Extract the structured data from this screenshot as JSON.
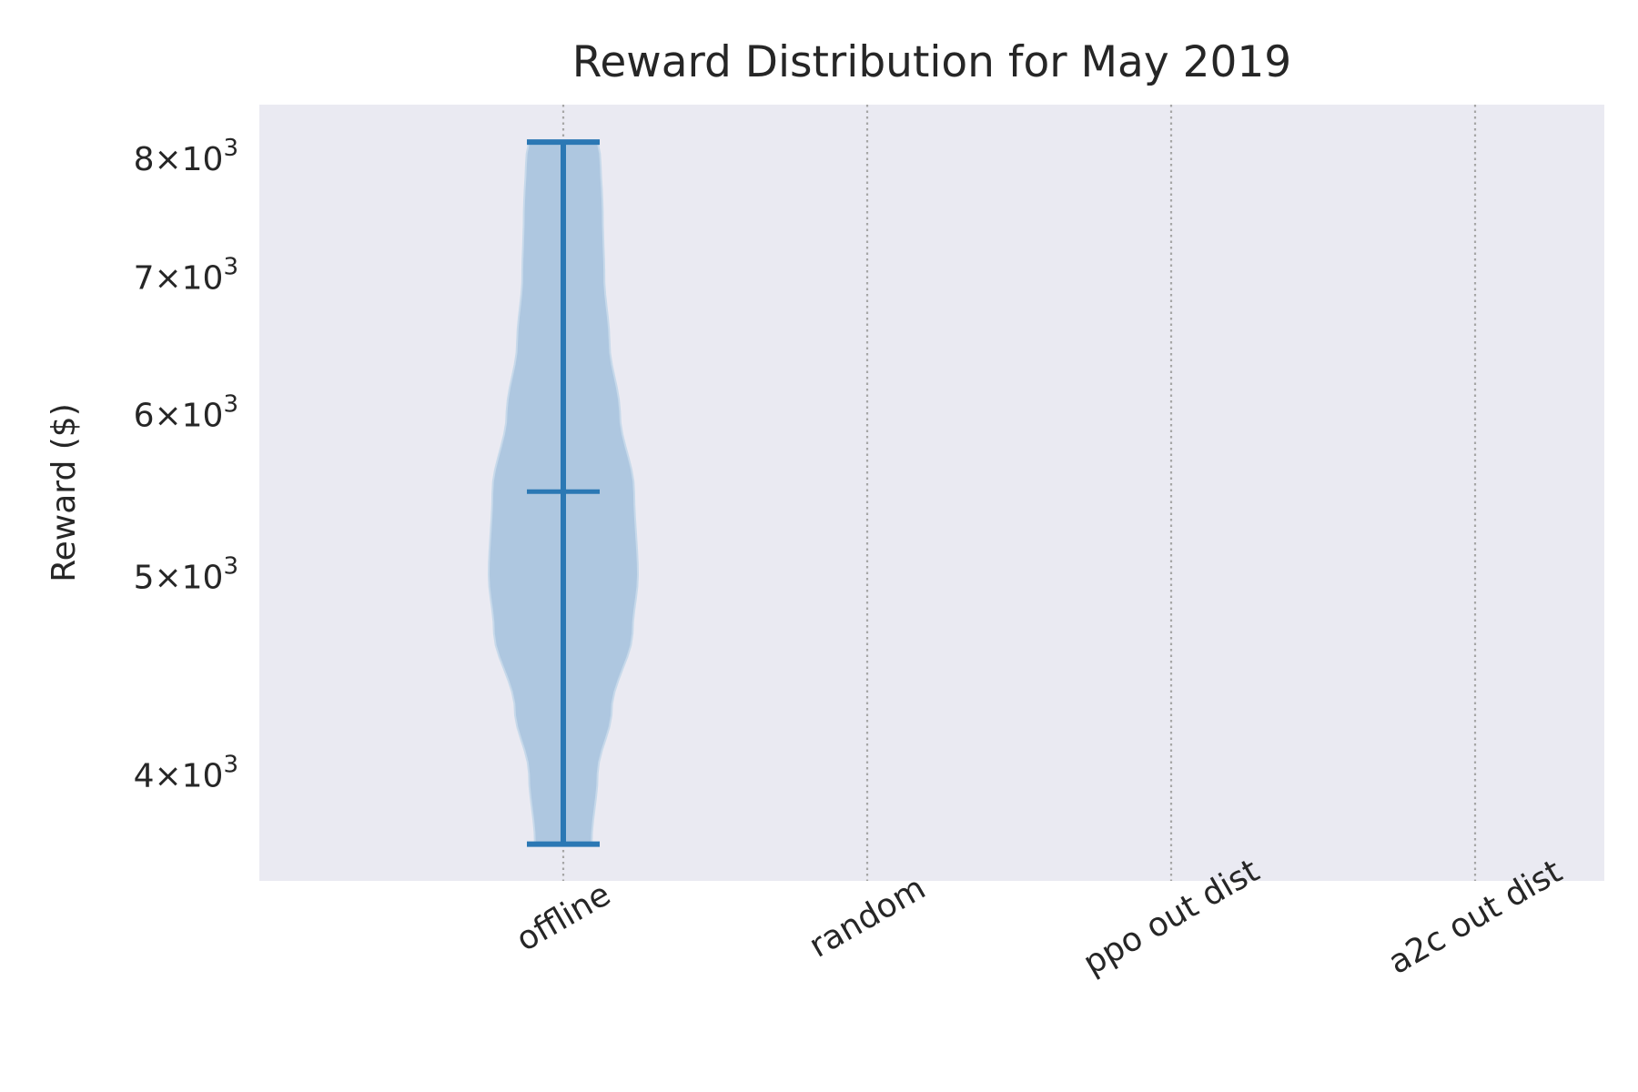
{
  "chart_data": {
    "type": "violin",
    "title": "Reward Distribution for May 2019",
    "xlabel": "",
    "ylabel": "Reward ($)",
    "yscale": "log",
    "ylim": [
      3550,
      8500
    ],
    "grid": "vertical dotted lines at categories",
    "categories": [
      "offline",
      "random",
      "ppo out dist",
      "a2c out dist"
    ],
    "yticks": [
      {
        "value": 4000,
        "mantissa": "4",
        "base": "10",
        "exp": "3"
      },
      {
        "value": 5000,
        "mantissa": "5",
        "base": "10",
        "exp": "3"
      },
      {
        "value": 6000,
        "mantissa": "6",
        "base": "10",
        "exp": "3"
      },
      {
        "value": 7000,
        "mantissa": "7",
        "base": "10",
        "exp": "3"
      },
      {
        "value": 8000,
        "mantissa": "8",
        "base": "10",
        "exp": "3"
      }
    ],
    "violins": [
      {
        "category": "offline",
        "min": 3700,
        "median": 5500,
        "max": 8150,
        "density_profile": [
          [
            3700,
            0.38
          ],
          [
            4000,
            0.46
          ],
          [
            4300,
            0.65
          ],
          [
            4700,
            0.93
          ],
          [
            5000,
            1.0
          ],
          [
            5500,
            0.95
          ],
          [
            6000,
            0.76
          ],
          [
            6500,
            0.62
          ],
          [
            7000,
            0.55
          ],
          [
            7500,
            0.53
          ],
          [
            8000,
            0.5
          ],
          [
            8150,
            0.46
          ]
        ]
      }
    ],
    "colors": {
      "body_fill": "#aec7e0",
      "body_edge": "#c7d9ea",
      "lines": "#2b78b4",
      "plot_bg": "#eaeaf2",
      "grid": "#a6a6a6",
      "text": "#262626"
    }
  }
}
